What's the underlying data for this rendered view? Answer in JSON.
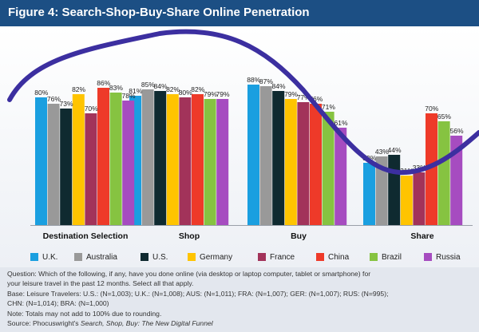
{
  "figure_title": "Figure 4: Search-Shop-Buy-Share Online Penetration",
  "colors": {
    "header_bg": "#1c4f84",
    "curve": "#3c2fa0",
    "footer_bg": "#e3e7ee"
  },
  "chart_data": {
    "type": "bar",
    "title": "",
    "xlabel": "",
    "ylabel": "",
    "ylim": [
      0,
      100
    ],
    "grid": false,
    "legend_position": "bottom",
    "value_suffix": "%",
    "categories": [
      "Destination Selection",
      "Shop",
      "Buy",
      "Share"
    ],
    "series": [
      {
        "name": "U.K.",
        "color": "#1a9fe0",
        "values": [
          80,
          81,
          88,
          39
        ]
      },
      {
        "name": "Australia",
        "color": "#999999",
        "values": [
          76,
          85,
          87,
          43
        ]
      },
      {
        "name": "U.S.",
        "color": "#0f2a30",
        "values": [
          73,
          84,
          84,
          44
        ]
      },
      {
        "name": "Germany",
        "color": "#ffc400",
        "values": [
          82,
          82,
          79,
          31
        ]
      },
      {
        "name": "France",
        "color": "#a2335a",
        "values": [
          70,
          80,
          77,
          33
        ]
      },
      {
        "name": "China",
        "color": "#ee3a29",
        "values": [
          86,
          82,
          76,
          70
        ]
      },
      {
        "name": "Brazil",
        "color": "#86c341",
        "values": [
          83,
          79,
          71,
          65
        ]
      },
      {
        "name": "Russia",
        "color": "#a64cc0",
        "values": [
          78,
          79,
          61,
          56
        ]
      }
    ],
    "overlay_curve": {
      "type": "trend-curve",
      "color": "#3c2fa0",
      "label": ""
    }
  },
  "footer": {
    "lines": [
      {
        "parts": [
          {
            "text": "Question: Which of the following, if any, have you done online (via desktop or laptop computer, tablet or smartphone) for"
          }
        ]
      },
      {
        "parts": [
          {
            "text": "your leisure travel in the past 12 months. Select all that apply."
          }
        ]
      },
      {
        "parts": [
          {
            "text": "Base: Leisure Travelers: U.S.: (N=1,003); U.K.: (N=1,008); AUS: (N=1,011); FRA: (N=1,007); GER: (N=1,007); RUS: (N=995);"
          }
        ]
      },
      {
        "parts": [
          {
            "text": "CHN: (N=1,014); BRA: (N=1,000)"
          }
        ]
      },
      {
        "parts": [
          {
            "text": "Note: Totals may not add to 100% due to rounding."
          }
        ]
      },
      {
        "parts": [
          {
            "text": "Source: Phocuswright's "
          },
          {
            "text": "Search, Shop, Buy: The New Digital Funnel",
            "italic": true
          }
        ]
      }
    ]
  }
}
